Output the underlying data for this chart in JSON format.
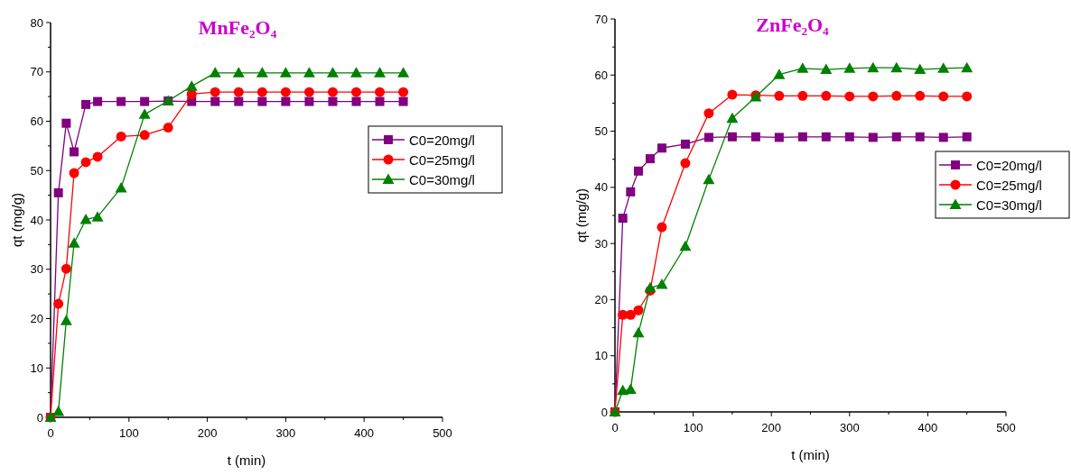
{
  "chart_data": [
    {
      "type": "line",
      "title": "MnFe₂O₄",
      "xlabel": "t (min)",
      "ylabel": "qt (mg/g)",
      "x": [
        0,
        10,
        20,
        30,
        45,
        60,
        90,
        120,
        150,
        180,
        210,
        240,
        270,
        300,
        330,
        360,
        390,
        420,
        450
      ],
      "series": [
        {
          "name": "C0=20mg/l",
          "color": "#800080",
          "marker": "square",
          "values": [
            0,
            45.5,
            59.6,
            53.8,
            63.4,
            64,
            64,
            64,
            64.1,
            64,
            64,
            64,
            64,
            64,
            64,
            64,
            64,
            64,
            64
          ]
        },
        {
          "name": "C0=25mg/l",
          "color": "#ff0000",
          "marker": "circle",
          "values": [
            0,
            23,
            30.1,
            49.5,
            51.7,
            52.8,
            56.9,
            57.2,
            58.7,
            65.5,
            65.9,
            65.9,
            65.9,
            65.9,
            65.9,
            65.9,
            65.9,
            65.9,
            65.9
          ]
        },
        {
          "name": "C0=30mg/l",
          "color": "#008000",
          "marker": "triangle",
          "values": [
            0,
            1.2,
            19.6,
            35.3,
            40.1,
            40.6,
            46.5,
            61.4,
            64.1,
            67.1,
            69.8,
            69.8,
            69.8,
            69.8,
            69.8,
            69.8,
            69.8,
            69.8,
            69.8
          ]
        }
      ],
      "xlim": [
        0,
        500
      ],
      "ylim": [
        0,
        80
      ],
      "xticks": [
        0,
        {
          "value": 50,
          "label": null
        },
        100,
        {
          "value": 150,
          "label": null
        },
        200,
        {
          "value": 250,
          "label": null
        },
        300,
        {
          "value": 350,
          "label": null
        },
        400,
        {
          "value": 450,
          "label": null
        },
        500
      ],
      "yticks": [
        0,
        {
          "value": 5,
          "label": null
        },
        10,
        {
          "value": 15,
          "label": null
        },
        20,
        {
          "value": 25,
          "label": null
        },
        30,
        {
          "value": 35,
          "label": null
        },
        40,
        {
          "value": 45,
          "label": null
        },
        50,
        {
          "value": 55,
          "label": null
        },
        60,
        {
          "value": 65,
          "label": null
        },
        70,
        {
          "value": 75,
          "label": null
        },
        80
      ],
      "legend": "right",
      "grid": false
    },
    {
      "type": "line",
      "title": "ZnFe₂O₄",
      "xlabel": "t (min)",
      "ylabel": "qt (mg/g)",
      "x": [
        0,
        10,
        20,
        30,
        45,
        60,
        90,
        120,
        150,
        180,
        210,
        240,
        270,
        300,
        330,
        360,
        390,
        420,
        450
      ],
      "series": [
        {
          "name": "C0=20mg/l",
          "color": "#800080",
          "marker": "square",
          "values": [
            0,
            34.5,
            39.2,
            42.9,
            45.1,
            47,
            47.7,
            48.9,
            49,
            49,
            48.9,
            49,
            49,
            49,
            48.9,
            49,
            49,
            48.9,
            49
          ]
        },
        {
          "name": "C0=25mg/l",
          "color": "#ff0000",
          "marker": "circle",
          "values": [
            0,
            17.3,
            17.3,
            18.1,
            21.6,
            32.9,
            44.3,
            53.2,
            56.5,
            56.4,
            56.3,
            56.3,
            56.3,
            56.2,
            56.2,
            56.3,
            56.3,
            56.2,
            56.2
          ]
        },
        {
          "name": "C0=30mg/l",
          "color": "#008000",
          "marker": "triangle",
          "values": [
            0,
            3.8,
            4,
            14.1,
            22.1,
            22.7,
            29.5,
            41.4,
            52.3,
            56.1,
            60.1,
            61.2,
            61,
            61.2,
            61.3,
            61.3,
            61,
            61.2,
            61.3
          ]
        }
      ],
      "xlim": [
        0,
        500
      ],
      "ylim": [
        0,
        70
      ],
      "xticks": [
        0,
        {
          "value": 50,
          "label": null
        },
        100,
        {
          "value": 150,
          "label": null
        },
        200,
        {
          "value": 250,
          "label": null
        },
        300,
        {
          "value": 350,
          "label": null
        },
        400,
        {
          "value": 450,
          "label": null
        },
        500
      ],
      "yticks": [
        0,
        {
          "value": 5,
          "label": null
        },
        10,
        {
          "value": 15,
          "label": null
        },
        20,
        {
          "value": 25,
          "label": null
        },
        30,
        {
          "value": 35,
          "label": null
        },
        40,
        {
          "value": 45,
          "label": null
        },
        50,
        {
          "value": 55,
          "label": null
        },
        60,
        {
          "value": 65,
          "label": null
        },
        70
      ],
      "legend": "right",
      "grid": false
    }
  ]
}
